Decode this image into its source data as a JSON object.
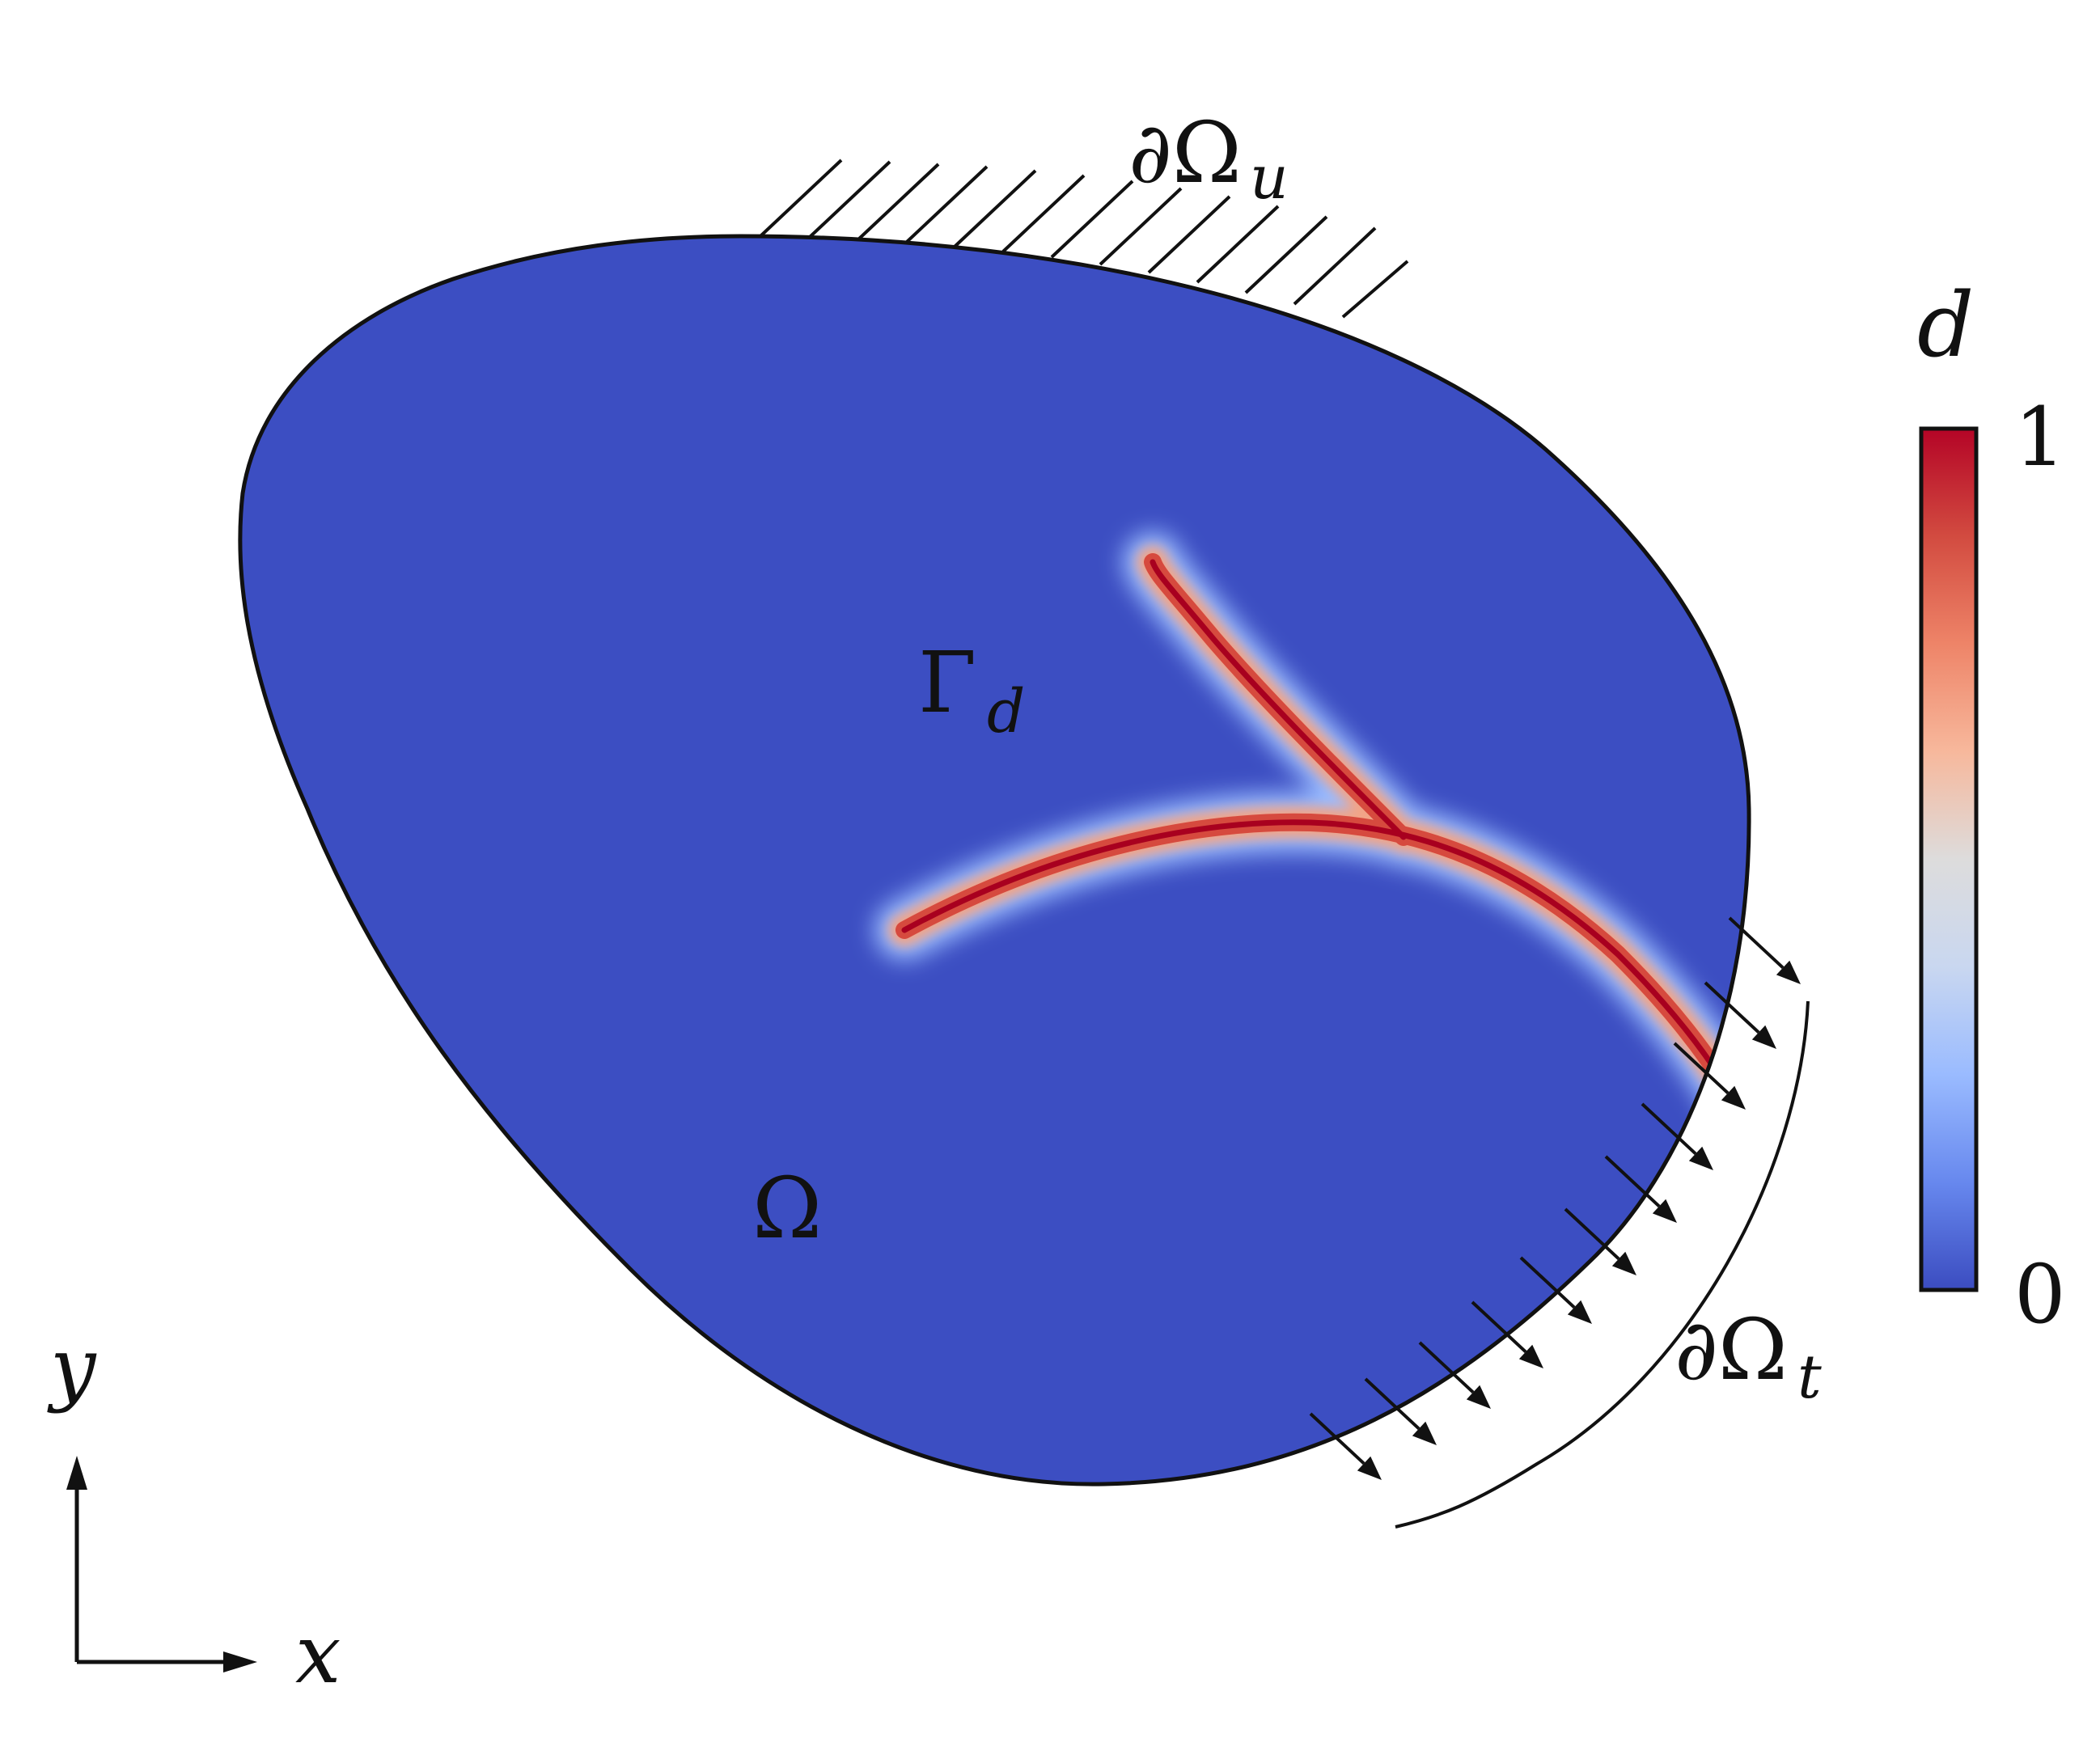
{
  "labels": {
    "boundary_u": {
      "main": "∂Ω",
      "sub": "u"
    },
    "boundary_t": {
      "main": "∂Ω",
      "sub": "t"
    },
    "crack": {
      "main": "Γ",
      "sub": "d"
    },
    "domain": "Ω"
  },
  "axes": {
    "x": "x",
    "y": "y"
  },
  "colorbar": {
    "title": "d",
    "max_label": "1",
    "min_label": "0",
    "colors": [
      "#3b4cc0",
      "#6788ee",
      "#9abbff",
      "#c9d7f0",
      "#dddcdc",
      "#f7b89c",
      "#ee8468",
      "#d24b40",
      "#b40426"
    ]
  },
  "colors": {
    "domain_fill": "#3c4ec2",
    "crack_core": "#b40426",
    "outline": "#111111"
  }
}
